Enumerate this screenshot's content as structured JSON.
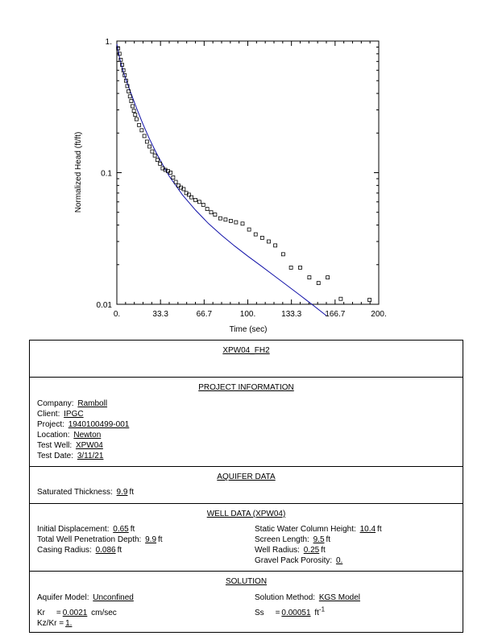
{
  "chart_data": {
    "type": "scatter",
    "xlabel": "Time  (sec)",
    "ylabel": "Normalized Head (ft/ft)",
    "xlim": [
      0,
      200
    ],
    "ylim": [
      0.01,
      1
    ],
    "yscale": "log",
    "x_ticks": [
      "0.",
      "33.3",
      "66.7",
      "100.",
      "133.3",
      "166.7",
      "200."
    ],
    "y_ticks": [
      "0.01",
      "0.1",
      "1."
    ],
    "series": [
      {
        "kind": "observed",
        "color": "#000000",
        "marker": "open-square",
        "x": [
          1,
          2,
          3,
          4,
          5,
          6,
          7,
          8,
          9,
          10,
          11,
          12,
          13,
          14,
          15,
          17,
          19,
          21,
          23,
          25,
          27,
          29,
          31,
          33,
          35,
          37,
          39,
          41,
          43,
          45,
          47,
          49,
          51,
          53,
          55,
          57,
          60,
          63,
          66,
          69,
          72,
          75,
          79,
          83,
          87,
          91,
          96,
          101,
          106,
          111,
          116,
          121,
          127,
          133,
          140,
          147,
          154,
          161,
          171,
          193
        ],
        "y": [
          0.88,
          0.8,
          0.72,
          0.66,
          0.6,
          0.55,
          0.5,
          0.455,
          0.415,
          0.38,
          0.35,
          0.32,
          0.295,
          0.275,
          0.255,
          0.23,
          0.21,
          0.19,
          0.172,
          0.158,
          0.145,
          0.135,
          0.125,
          0.117,
          0.108,
          0.105,
          0.103,
          0.1,
          0.092,
          0.085,
          0.08,
          0.077,
          0.075,
          0.07,
          0.068,
          0.065,
          0.062,
          0.06,
          0.057,
          0.053,
          0.05,
          0.048,
          0.045,
          0.044,
          0.043,
          0.042,
          0.041,
          0.037,
          0.034,
          0.032,
          0.03,
          0.028,
          0.024,
          0.019,
          0.019,
          0.016,
          0.0145,
          0.016,
          0.011,
          0.0108
        ]
      },
      {
        "kind": "fitted",
        "color": "#1010a8",
        "x": [
          0,
          2,
          5,
          10,
          15,
          20,
          25,
          30,
          35,
          40,
          50,
          60,
          70,
          80,
          90,
          100,
          110,
          120,
          130,
          140,
          150,
          160
        ],
        "y": [
          0.95,
          0.75,
          0.58,
          0.42,
          0.31,
          0.233,
          0.18,
          0.142,
          0.115,
          0.094,
          0.068,
          0.052,
          0.041,
          0.0335,
          0.0277,
          0.0232,
          0.0196,
          0.0165,
          0.0139,
          0.0117,
          0.0098,
          0.0082
        ]
      }
    ]
  },
  "panel": {
    "title": "XPW04_FH2",
    "project": {
      "header": "PROJECT INFORMATION",
      "company_label": "Company:",
      "company": "Ramboll",
      "client_label": "Client:",
      "client": "IPGC",
      "project_label": "Project:",
      "project": "1940100499-001",
      "location_label": "Location:",
      "location": "Newton",
      "test_well_label": "Test Well:",
      "test_well": "XPW04",
      "test_date_label": "Test Date:",
      "test_date": "3/11/21"
    },
    "aquifer": {
      "header": "AQUIFER DATA",
      "sat_thickness_label": "Saturated Thickness:",
      "sat_thickness": "9.9",
      "sat_thickness_unit": "ft"
    },
    "well": {
      "header": "WELL DATA (XPW04)",
      "init_disp_label": "Initial Displacement:",
      "init_disp": "0.65",
      "init_disp_unit": "ft",
      "static_label": "Static Water Column Height:",
      "static": "10.4",
      "static_unit": "ft",
      "penetration_label": "Total Well Penetration Depth:",
      "penetration": "9.9",
      "penetration_unit": "ft",
      "screen_label": "Screen Length:",
      "screen": "9.5",
      "screen_unit": "ft",
      "casing_label": "Casing Radius:",
      "casing": "0.086",
      "casing_unit": "ft",
      "well_radius_label": "Well Radius:",
      "well_radius": "0.25",
      "well_radius_unit": "ft",
      "porosity_label": "Gravel Pack Porosity:",
      "porosity": "0."
    },
    "solution": {
      "header": "SOLUTION",
      "model_label": "Aquifer Model:",
      "model": "Unconfined",
      "method_label": "Solution Method:",
      "method": "KGS Model",
      "kr_label": "Kr",
      "kr": "0.0021",
      "kr_unit": "cm/sec",
      "ss_label": "Ss",
      "ss": "0.00051",
      "ss_unit": "ft",
      "ss_exp": "-1",
      "kzkr_label": "Kz/Kr",
      "kzkr": "1."
    }
  }
}
